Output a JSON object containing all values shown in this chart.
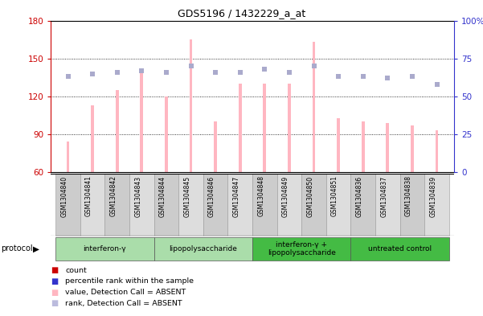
{
  "title": "GDS5196 / 1432229_a_at",
  "samples": [
    "GSM1304840",
    "GSM1304841",
    "GSM1304842",
    "GSM1304843",
    "GSM1304844",
    "GSM1304845",
    "GSM1304846",
    "GSM1304847",
    "GSM1304848",
    "GSM1304849",
    "GSM1304850",
    "GSM1304851",
    "GSM1304836",
    "GSM1304837",
    "GSM1304838",
    "GSM1304839"
  ],
  "bar_values": [
    84,
    113,
    125,
    142,
    120,
    165,
    100,
    130,
    130,
    130,
    163,
    103,
    100,
    99,
    97,
    93
  ],
  "rank_values": [
    63,
    65,
    66,
    67,
    66,
    70,
    66,
    66,
    68,
    66,
    70,
    63,
    63,
    62,
    63,
    58
  ],
  "groups": [
    {
      "label": "interferon-γ",
      "start": 0,
      "end": 4,
      "color": "#AADDAA"
    },
    {
      "label": "lipopolysaccharide",
      "start": 4,
      "end": 8,
      "color": "#AADDAA"
    },
    {
      "label": "interferon-γ +\nlipopolysaccharide",
      "start": 8,
      "end": 12,
      "color": "#44BB44"
    },
    {
      "label": "untreated control",
      "start": 12,
      "end": 16,
      "color": "#44BB44"
    }
  ],
  "ylim_left": [
    60,
    180
  ],
  "ylim_right": [
    0,
    100
  ],
  "yticks_left": [
    60,
    90,
    120,
    150,
    180
  ],
  "yticks_right": [
    0,
    25,
    50,
    75,
    100
  ],
  "bar_color": "#FFB6C1",
  "bar_width": 0.12,
  "rank_color": "#AAAACC",
  "left_axis_color": "#CC0000",
  "right_axis_color": "#3333CC",
  "bg_color": "#FFFFFF",
  "legend_items": [
    {
      "label": "count",
      "color": "#CC0000"
    },
    {
      "label": "percentile rank within the sample",
      "color": "#3333CC"
    },
    {
      "label": "value, Detection Call = ABSENT",
      "color": "#FFB6C1"
    },
    {
      "label": "rank, Detection Call = ABSENT",
      "color": "#BBBBDD"
    }
  ],
  "col_bg_even": "#CCCCCC",
  "col_bg_odd": "#DDDDDD"
}
